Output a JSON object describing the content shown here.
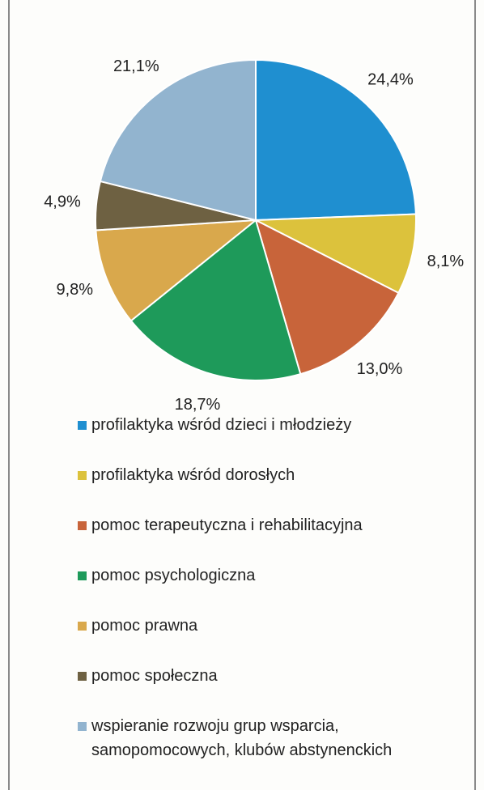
{
  "chart_data": {
    "type": "pie",
    "categories": [
      "profilaktyka wśród dzieci i młodzieży",
      "profilaktyka wśród dorosłych",
      "pomoc terapeutyczna i rehabilitacyjna",
      "pomoc psychologiczna",
      "pomoc prawna",
      "pomoc społeczna",
      "wspieranie rozwoju grup wsparcia, samopomocowych, klubów abstynenckich"
    ],
    "values": [
      24.4,
      8.1,
      13.0,
      18.7,
      9.8,
      4.9,
      21.1
    ],
    "value_labels": [
      "24,4%",
      "8,1%",
      "13,0%",
      "18,7%",
      "9,8%",
      "4,9%",
      "21,1%"
    ],
    "colors": [
      "#1f8fd0",
      "#dcc23c",
      "#c8643a",
      "#1e9a5a",
      "#d9a84c",
      "#6e6142",
      "#92b4cf"
    ]
  }
}
